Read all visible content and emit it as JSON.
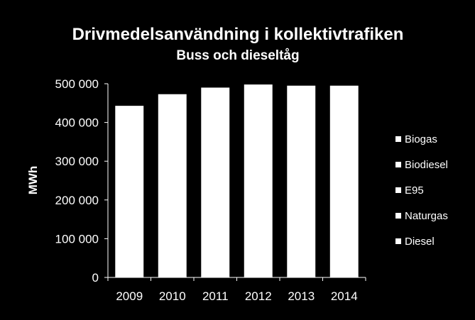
{
  "chart_data": {
    "type": "bar",
    "stacked": true,
    "title": "Drivmedelsanvändning i kollektivtrafiken",
    "subtitle": "Buss och dieseltåg",
    "xlabel": "",
    "ylabel": "MWh",
    "categories": [
      "2009",
      "2010",
      "2011",
      "2012",
      "2013",
      "2014"
    ],
    "ylim": [
      0,
      500000
    ],
    "yticks": [
      0,
      100000,
      200000,
      300000,
      400000,
      500000
    ],
    "ytick_labels": [
      "0",
      "100 000",
      "200 000",
      "300 000",
      "400 000",
      "500 000"
    ],
    "totals": [
      443000,
      473000,
      490000,
      498000,
      495000,
      495000
    ],
    "series": [
      {
        "name": "Biogas",
        "color": "#ffffff"
      },
      {
        "name": "Biodiesel",
        "color": "#ffffff"
      },
      {
        "name": "E95",
        "color": "#ffffff"
      },
      {
        "name": "Naturgas",
        "color": "#ffffff"
      },
      {
        "name": "Diesel",
        "color": "#ffffff"
      }
    ],
    "legend_position": "right",
    "grid": false,
    "colors": {
      "background": "#000000",
      "foreground": "#ffffff"
    }
  }
}
